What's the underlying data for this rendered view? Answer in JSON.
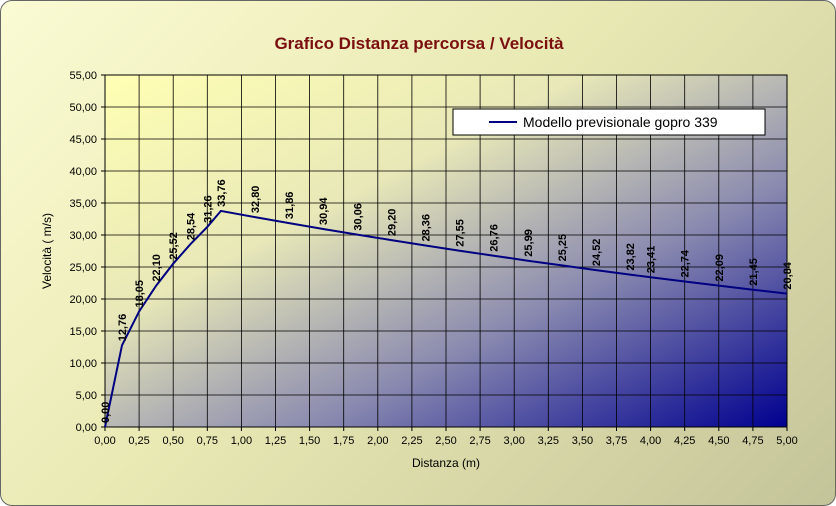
{
  "chart_data": {
    "type": "line",
    "title": "Grafico Distanza percorsa / Velocità",
    "xlabel": "Distanza (m)",
    "ylabel": "Velocità ( m/s)",
    "xlim": [
      0,
      5
    ],
    "ylim": [
      0,
      55
    ],
    "x_ticks": [
      "0,00",
      "0,25",
      "0,50",
      "0,75",
      "1,00",
      "1,25",
      "1,50",
      "1,75",
      "2,00",
      "2,25",
      "2,50",
      "2,75",
      "3,00",
      "3,25",
      "3,50",
      "3,75",
      "4,00",
      "4,25",
      "4,50",
      "4,75",
      "5,00"
    ],
    "y_ticks": [
      "0,00",
      "5,00",
      "10,00",
      "15,00",
      "20,00",
      "25,00",
      "30,00",
      "35,00",
      "40,00",
      "45,00",
      "50,00",
      "55,00"
    ],
    "grid": true,
    "legend_position": "top-right",
    "series": [
      {
        "name": "Modello previsionale gopro 339",
        "color": "#000080",
        "points": [
          {
            "x": 0.0,
            "y": 0.0,
            "label": "0,00"
          },
          {
            "x": 0.125,
            "y": 12.76,
            "label": "12,76"
          },
          {
            "x": 0.25,
            "y": 18.05,
            "label": "18,05"
          },
          {
            "x": 0.375,
            "y": 22.1,
            "label": "22,10"
          },
          {
            "x": 0.5,
            "y": 25.52,
            "label": "25,52"
          },
          {
            "x": 0.625,
            "y": 28.54,
            "label": "28,54"
          },
          {
            "x": 0.75,
            "y": 31.26,
            "label": "31,26"
          },
          {
            "x": 0.85,
            "y": 33.76,
            "label": "33,76"
          },
          {
            "x": 1.1,
            "y": 32.8,
            "label": "32,80"
          },
          {
            "x": 1.35,
            "y": 31.86,
            "label": "31,86"
          },
          {
            "x": 1.6,
            "y": 30.94,
            "label": "30,94"
          },
          {
            "x": 1.85,
            "y": 30.06,
            "label": "30,06"
          },
          {
            "x": 2.1,
            "y": 29.2,
            "label": "29,20"
          },
          {
            "x": 2.35,
            "y": 28.36,
            "label": "28,36"
          },
          {
            "x": 2.6,
            "y": 27.55,
            "label": "27,55"
          },
          {
            "x": 2.85,
            "y": 26.76,
            "label": "26,76"
          },
          {
            "x": 3.1,
            "y": 25.99,
            "label": "25,99"
          },
          {
            "x": 3.35,
            "y": 25.25,
            "label": "25,25"
          },
          {
            "x": 3.6,
            "y": 24.52,
            "label": "24,52"
          },
          {
            "x": 3.85,
            "y": 23.82,
            "label": "23,82"
          },
          {
            "x": 4.0,
            "y": 23.41,
            "label": "23,41"
          },
          {
            "x": 4.25,
            "y": 22.74,
            "label": "22,74"
          },
          {
            "x": 4.5,
            "y": 22.09,
            "label": "22,09"
          },
          {
            "x": 4.75,
            "y": 21.45,
            "label": "21,45"
          },
          {
            "x": 5.0,
            "y": 20.84,
            "label": "20,84"
          }
        ]
      }
    ]
  }
}
